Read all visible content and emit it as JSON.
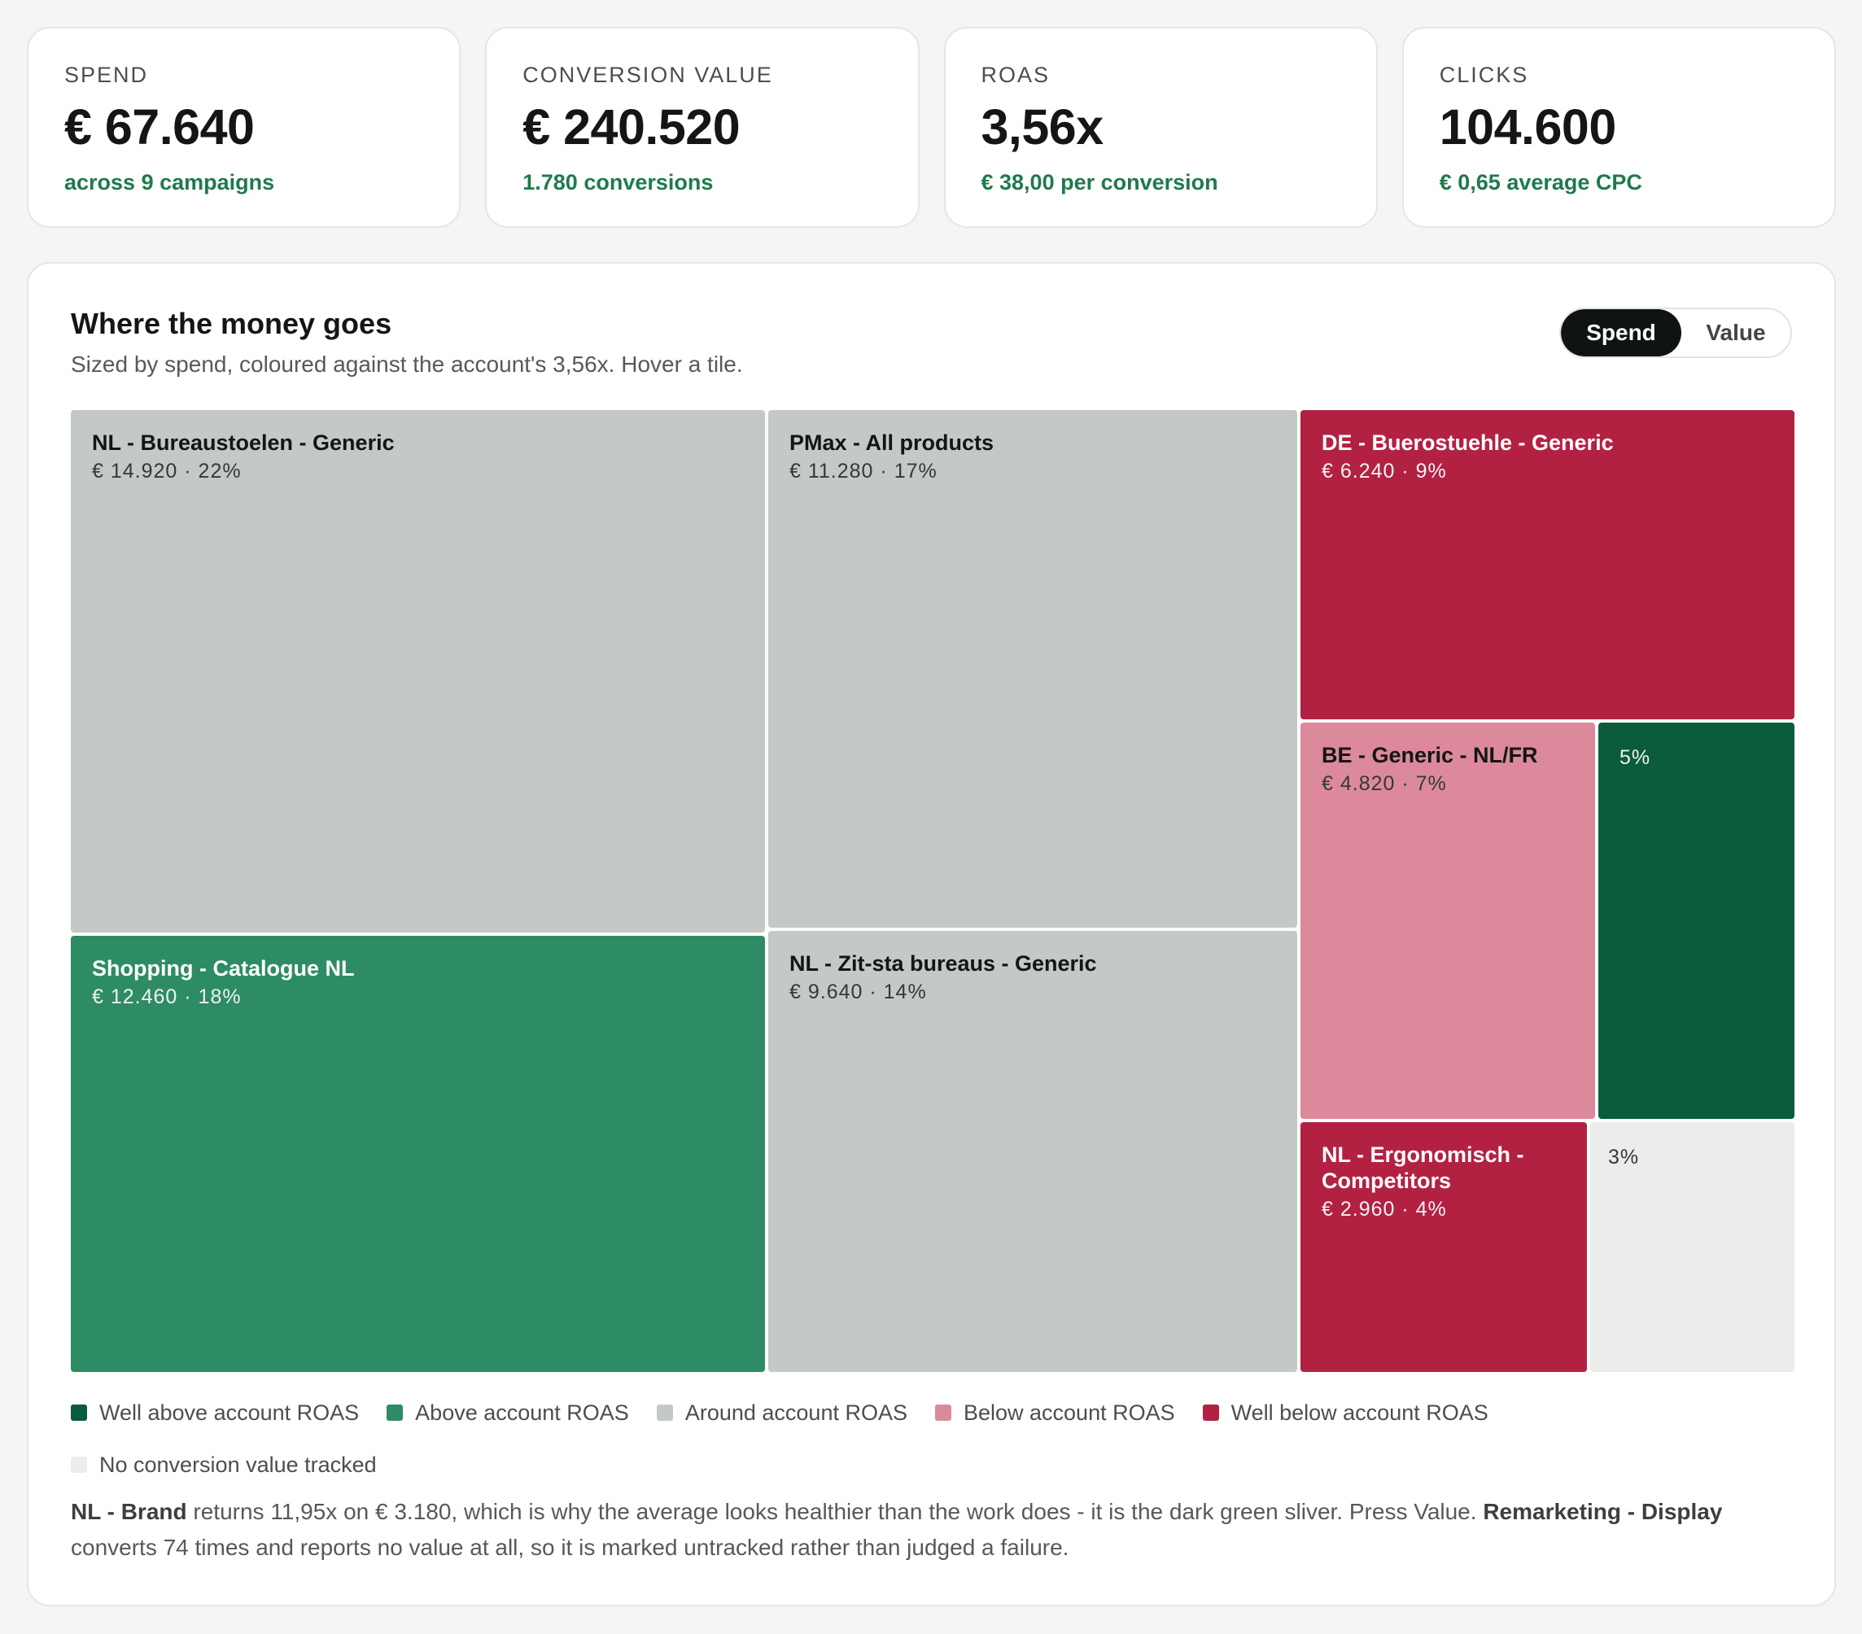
{
  "kpis": [
    {
      "label": "SPEND",
      "value": "€ 67.640",
      "sub": "across 9 campaigns"
    },
    {
      "label": "CONVERSION VALUE",
      "value": "€ 240.520",
      "sub": "1.780 conversions"
    },
    {
      "label": "ROAS",
      "value": "3,56x",
      "sub": "€ 38,00 per conversion"
    },
    {
      "label": "CLICKS",
      "value": "104.600",
      "sub": "€ 0,65 average CPC"
    }
  ],
  "panel": {
    "title": "Where the money goes",
    "subtitle": "Sized by spend, coloured against the account's 3,56x. Hover a tile.",
    "toggle": {
      "spend": "Spend",
      "value": "Value",
      "active": "spend"
    }
  },
  "colors": {
    "well_above": "#0b5c3c",
    "above": "#2d8c63",
    "around": "#c4c9c5",
    "below": "#dc899c",
    "well_below": "#b32142",
    "untracked": "#ecedeb"
  },
  "chart_data": {
    "type": "treemap",
    "sized_by": "spend",
    "total_spend": 67640,
    "tiles": [
      {
        "name": "NL - Bureaustoelen - Generic",
        "spend": 14920,
        "spend_label": "€ 14.920",
        "share": "22%",
        "category": "around"
      },
      {
        "name": "Shopping - Catalogue NL",
        "spend": 12460,
        "spend_label": "€ 12.460",
        "share": "18%",
        "category": "above"
      },
      {
        "name": "PMax - All products",
        "spend": 11280,
        "spend_label": "€ 11.280",
        "share": "17%",
        "category": "around"
      },
      {
        "name": "NL - Zit-sta bureaus - Generic",
        "spend": 9640,
        "spend_label": "€ 9.640",
        "share": "14%",
        "category": "around"
      },
      {
        "name": "DE - Buerostuehle - Generic",
        "spend": 6240,
        "spend_label": "€ 6.240",
        "share": "9%",
        "category": "well_below"
      },
      {
        "name": "BE - Generic - NL/FR",
        "spend": 4820,
        "spend_label": "€ 4.820",
        "share": "7%",
        "category": "below"
      },
      {
        "name": "",
        "spend": 3180,
        "spend_label": "",
        "share": "5%",
        "category": "well_above"
      },
      {
        "name": "NL - Ergonomisch - Competitors",
        "spend": 2960,
        "spend_label": "€ 2.960",
        "share": "4%",
        "category": "well_below"
      },
      {
        "name": "",
        "spend": null,
        "spend_label": "",
        "share": "3%",
        "category": "untracked"
      }
    ],
    "legend": [
      {
        "key": "well_above",
        "label": "Well above account ROAS"
      },
      {
        "key": "above",
        "label": "Above account ROAS"
      },
      {
        "key": "around",
        "label": "Around account ROAS"
      },
      {
        "key": "below",
        "label": "Below account ROAS"
      },
      {
        "key": "well_below",
        "label": "Well below account ROAS"
      },
      {
        "key": "untracked",
        "label": "No conversion value tracked"
      }
    ]
  },
  "note": {
    "b1": "NL - Brand",
    "t1": " returns 11,95x on € 3.180, which is why the average looks healthier than the work does - it is the dark green sliver. Press Value. ",
    "b2": "Remarketing - Display",
    "t2": " converts 74 times and reports no value at all, so it is marked untracked rather than judged a failure."
  }
}
